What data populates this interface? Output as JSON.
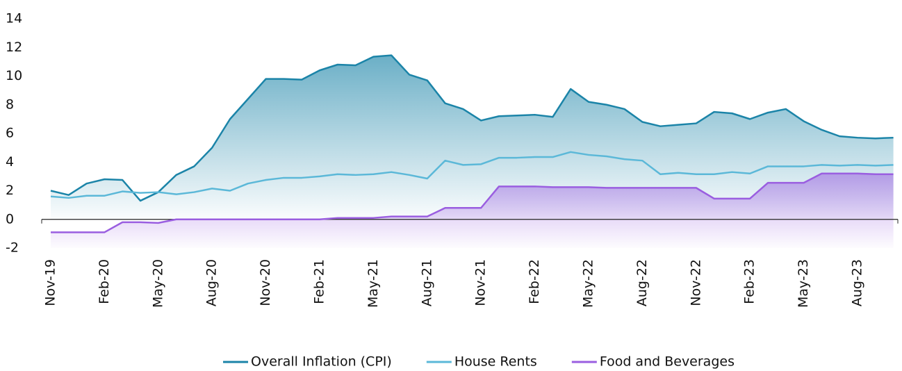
{
  "chart_data": {
    "type": "line",
    "categories": [
      "Nov-19",
      null,
      null,
      "Feb-20",
      null,
      null,
      "May-20",
      null,
      null,
      "Aug-20",
      null,
      null,
      "Nov-20",
      null,
      null,
      "Feb-21",
      null,
      null,
      "May-21",
      null,
      null,
      "Aug-21",
      null,
      null,
      "Nov-21",
      null,
      null,
      "Feb-22",
      null,
      null,
      "May-22",
      null,
      null,
      "Aug-22",
      null,
      null,
      "Nov-22",
      null,
      null,
      "Feb-23",
      null,
      null,
      "May-23",
      null,
      null,
      "Aug-23",
      null,
      null
    ],
    "series": [
      {
        "name": "Overall Inflation (CPI)",
        "color": "#1b84a8",
        "area": true,
        "values": [
          2.0,
          1.7,
          2.5,
          2.8,
          2.75,
          1.3,
          1.9,
          3.1,
          3.7,
          5.0,
          7.0,
          8.4,
          9.8,
          9.8,
          9.75,
          10.4,
          10.8,
          10.75,
          11.35,
          11.45,
          10.1,
          9.7,
          8.1,
          7.7,
          6.9,
          7.2,
          7.25,
          7.3,
          7.15,
          9.1,
          8.2,
          8.0,
          7.7,
          6.8,
          6.5,
          6.6,
          6.7,
          7.5,
          7.4,
          7.0,
          7.45,
          7.7,
          6.85,
          6.25,
          5.8,
          5.7,
          5.65,
          5.7
        ]
      },
      {
        "name": "House Rents",
        "color": "#5bb8d8",
        "area": false,
        "values": [
          1.6,
          1.5,
          1.65,
          1.65,
          1.95,
          1.85,
          1.9,
          1.75,
          1.9,
          2.15,
          2.0,
          2.5,
          2.75,
          2.9,
          2.9,
          3.0,
          3.15,
          3.1,
          3.15,
          3.3,
          3.1,
          2.85,
          4.1,
          3.8,
          3.85,
          4.3,
          4.3,
          4.35,
          4.35,
          4.7,
          4.5,
          4.4,
          4.2,
          4.1,
          3.15,
          3.25,
          3.15,
          3.15,
          3.3,
          3.2,
          3.7,
          3.7,
          3.7,
          3.8,
          3.75,
          3.8,
          3.75,
          3.8
        ]
      },
      {
        "name": "Food and Beverages",
        "color": "#9a5ee0",
        "area": true,
        "values": [
          -0.9,
          -0.9,
          -0.9,
          -0.9,
          -0.2,
          -0.2,
          -0.25,
          0,
          0,
          0,
          0,
          0,
          0,
          0,
          0,
          0,
          0.1,
          0.1,
          0.1,
          0.2,
          0.2,
          0.2,
          0.8,
          0.8,
          0.8,
          2.3,
          2.3,
          2.3,
          2.25,
          2.25,
          2.25,
          2.2,
          2.2,
          2.2,
          2.2,
          2.2,
          2.2,
          1.45,
          1.45,
          1.45,
          2.55,
          2.55,
          2.55,
          3.2,
          3.2,
          3.2,
          3.15,
          3.15
        ]
      }
    ],
    "ylim": [
      -2,
      14
    ],
    "yticks": [
      -2,
      0,
      2,
      4,
      6,
      8,
      10,
      12,
      14
    ],
    "grid": false,
    "legend": "bottom"
  }
}
